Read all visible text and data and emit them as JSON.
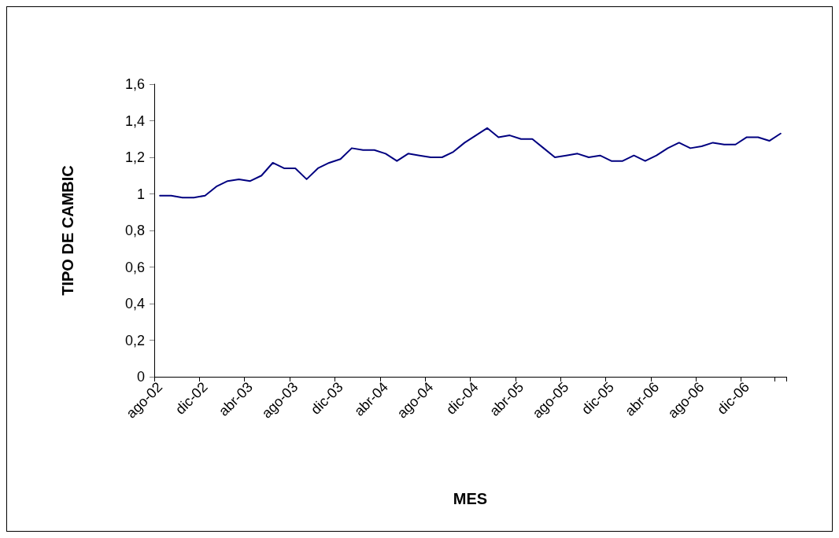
{
  "chart_data": {
    "type": "line",
    "xlabel": "MES",
    "ylabel": "TIPO DE CAMBIC",
    "categories": [
      "ago-02",
      null,
      null,
      null,
      "dic-02",
      null,
      null,
      null,
      "abr-03",
      null,
      null,
      null,
      "ago-03",
      null,
      null,
      null,
      "dic-03",
      null,
      null,
      null,
      "abr-04",
      null,
      null,
      null,
      "ago-04",
      null,
      null,
      null,
      "dic-04",
      null,
      null,
      null,
      "abr-05",
      null,
      null,
      null,
      "ago-05",
      null,
      null,
      null,
      "dic-05",
      null,
      null,
      null,
      "abr-06",
      null,
      null,
      null,
      "ago-06",
      null,
      null,
      null,
      "dic-06",
      null,
      null,
      null
    ],
    "series": [
      {
        "color": "#000080",
        "values": [
          0.99,
          0.99,
          0.98,
          0.98,
          0.99,
          1.04,
          1.07,
          1.08,
          1.07,
          1.1,
          1.17,
          1.14,
          1.14,
          1.08,
          1.14,
          1.17,
          1.19,
          1.25,
          1.24,
          1.24,
          1.22,
          1.18,
          1.22,
          1.21,
          1.2,
          1.2,
          1.23,
          1.28,
          1.32,
          1.36,
          1.31,
          1.32,
          1.3,
          1.3,
          1.25,
          1.2,
          1.21,
          1.22,
          1.2,
          1.21,
          1.18,
          1.18,
          1.21,
          1.18,
          1.21,
          1.25,
          1.28,
          1.25,
          1.26,
          1.28,
          1.27,
          1.27,
          1.31,
          1.31,
          1.29,
          1.33
        ]
      }
    ],
    "ylim": [
      0,
      1.6
    ],
    "yticks": [
      0,
      {
        "value": 0.2,
        "label": "0,2"
      },
      {
        "value": 0.4,
        "label": "0,4"
      },
      {
        "value": 0.6,
        "label": "0,6"
      },
      {
        "value": 0.8,
        "label": "0,8"
      },
      1,
      {
        "value": 1.2,
        "label": "1,2"
      },
      {
        "value": 1.4,
        "label": "1,4"
      },
      {
        "value": 1.6,
        "label": "1,6"
      }
    ],
    "grid": false,
    "marker": "none",
    "line_style": "solid"
  }
}
